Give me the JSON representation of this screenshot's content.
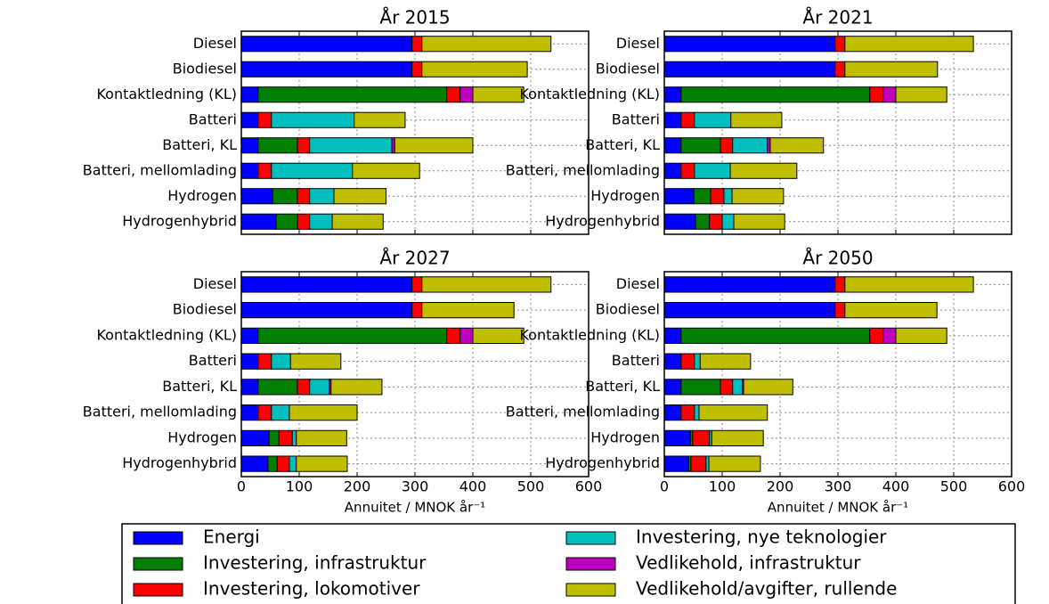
{
  "chart_data": [
    {
      "type": "bar",
      "orientation": "horizontal",
      "title": "År 2015",
      "categories": [
        "Diesel",
        "Biodiesel",
        "Kontaktledning (KL)",
        "Batteri",
        "Batteri, KL",
        "Batteri, mellomlading",
        "Hydrogen",
        "Hydrogenhybrid"
      ],
      "series": [
        {
          "name": "Energi",
          "color": "#0000ff",
          "values": [
            295,
            295,
            29,
            29,
            29,
            29,
            54,
            60
          ]
        },
        {
          "name": "Investering, infrastruktur",
          "color": "#007f00",
          "values": [
            0,
            0,
            326,
            0,
            68,
            0,
            43,
            37
          ]
        },
        {
          "name": "Investering, lokomotiver",
          "color": "#ff0000",
          "values": [
            17,
            17,
            23,
            23,
            21,
            23,
            21,
            21
          ]
        },
        {
          "name": "Investering, nye teknologier",
          "color": "#00bfbf",
          "values": [
            0,
            0,
            0,
            143,
            142,
            140,
            42,
            39
          ]
        },
        {
          "name": "Vedlikehold, infrastruktur",
          "color": "#bf00bf",
          "values": [
            0,
            0,
            22,
            0,
            5,
            0,
            0,
            0
          ]
        },
        {
          "name": "Vedlikehold/avgifter, rullende",
          "color": "#bfbf00",
          "values": [
            223,
            182,
            88,
            88,
            135,
            116,
            90,
            88
          ]
        }
      ],
      "xlim": [
        0,
        600
      ],
      "xticks": [
        0,
        100,
        200,
        300,
        400,
        500,
        600
      ],
      "xtick_labels": false,
      "grid": true,
      "legend": "lower center"
    },
    {
      "type": "bar",
      "orientation": "horizontal",
      "title": "År 2021",
      "categories": [
        "Diesel",
        "Biodiesel",
        "Kontaktledning (KL)",
        "Batteri",
        "Batteri, KL",
        "Batteri, mellomlading",
        "Hydrogen",
        "Hydrogenhybrid"
      ],
      "series": [
        {
          "color": "#0000ff",
          "values": [
            295,
            295,
            29,
            29,
            29,
            29,
            51,
            54
          ]
        },
        {
          "color": "#007f00",
          "values": [
            0,
            0,
            326,
            0,
            68,
            0,
            29,
            24
          ]
        },
        {
          "color": "#ff0000",
          "values": [
            17,
            17,
            23,
            23,
            21,
            23,
            23,
            22
          ]
        },
        {
          "color": "#00bfbf",
          "values": [
            0,
            0,
            0,
            63,
            60,
            62,
            14,
            20
          ]
        },
        {
          "color": "#bf00bf",
          "values": [
            0,
            0,
            22,
            0,
            5,
            0,
            0,
            0
          ]
        },
        {
          "color": "#bfbf00",
          "values": [
            222,
            160,
            88,
            88,
            92,
            115,
            89,
            88
          ]
        }
      ],
      "xlim": [
        0,
        600
      ],
      "xticks": [
        0,
        100,
        200,
        300,
        400,
        500,
        600
      ],
      "xtick_labels": false,
      "grid": true
    },
    {
      "type": "bar",
      "orientation": "horizontal",
      "title": "År 2027",
      "categories": [
        "Diesel",
        "Biodiesel",
        "Kontaktledning (KL)",
        "Batteri",
        "Batteri, KL",
        "Batteri, mellomlading",
        "Hydrogen",
        "Hydrogenhybrid"
      ],
      "series": [
        {
          "color": "#0000ff",
          "values": [
            295,
            295,
            29,
            29,
            29,
            29,
            48,
            46
          ]
        },
        {
          "color": "#007f00",
          "values": [
            0,
            0,
            326,
            0,
            68,
            0,
            17,
            16
          ]
        },
        {
          "color": "#ff0000",
          "values": [
            17,
            17,
            23,
            23,
            21,
            23,
            23,
            21
          ]
        },
        {
          "color": "#00bfbf",
          "values": [
            0,
            0,
            0,
            33,
            34,
            31,
            7,
            12
          ]
        },
        {
          "color": "#bf00bf",
          "values": [
            0,
            0,
            22,
            0,
            3,
            0,
            0,
            0
          ]
        },
        {
          "color": "#bfbf00",
          "values": [
            223,
            159,
            88,
            87,
            88,
            117,
            87,
            88
          ]
        }
      ],
      "xlim": [
        0,
        600
      ],
      "xticks": [
        0,
        100,
        200,
        300,
        400,
        500,
        600
      ],
      "xtick_labels": true,
      "grid": true,
      "xlabel": "Annuitet / MNOK år⁻¹"
    },
    {
      "type": "bar",
      "orientation": "horizontal",
      "title": "År 2050",
      "categories": [
        "Diesel",
        "Biodiesel",
        "Kontaktledning (KL)",
        "Batteri",
        "Batteri, KL",
        "Batteri, mellomlading",
        "Hydrogen",
        "Hydrogenhybrid"
      ],
      "series": [
        {
          "color": "#0000ff",
          "values": [
            295,
            295,
            29,
            29,
            29,
            29,
            45,
            42
          ]
        },
        {
          "color": "#007f00",
          "values": [
            0,
            0,
            326,
            0,
            68,
            0,
            4,
            4
          ]
        },
        {
          "color": "#ff0000",
          "values": [
            17,
            17,
            23,
            23,
            21,
            23,
            29,
            26
          ]
        },
        {
          "color": "#00bfbf",
          "values": [
            0,
            0,
            0,
            10,
            17,
            8,
            4,
            5
          ]
        },
        {
          "color": "#bf00bf",
          "values": [
            0,
            0,
            22,
            0,
            2,
            0,
            0,
            0
          ]
        },
        {
          "color": "#bfbf00",
          "values": [
            222,
            159,
            88,
            87,
            85,
            118,
            89,
            89
          ]
        }
      ],
      "xlim": [
        0,
        600
      ],
      "xticks": [
        0,
        100,
        200,
        300,
        400,
        500,
        600
      ],
      "xtick_labels": true,
      "grid": true,
      "xlabel": "Annuitet / MNOK år⁻¹"
    }
  ]
}
